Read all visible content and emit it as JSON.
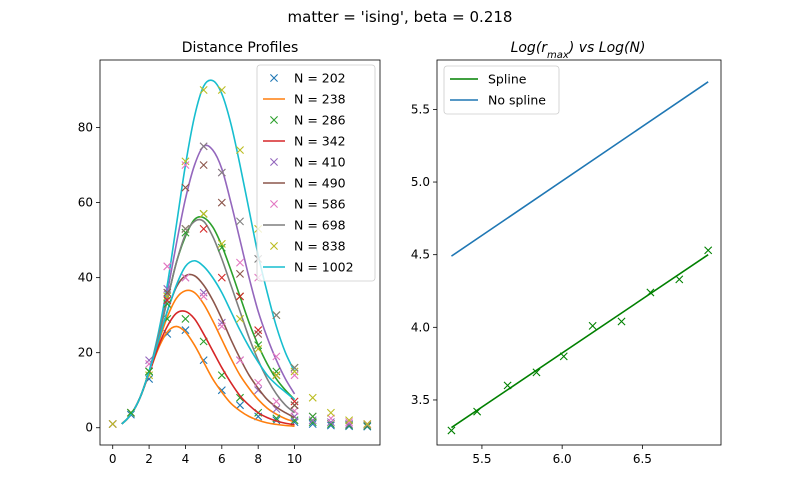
{
  "figure": {
    "suptitle": "matter = 'ising', beta = 0.218"
  },
  "chart_data": [
    {
      "type": "line",
      "title": "Distance Profiles",
      "xlabel": "",
      "ylabel": "",
      "xlim": [
        -0.7,
        14.7
      ],
      "ylim": [
        -4.6,
        98
      ],
      "xticks": [
        0,
        2,
        4,
        6,
        8,
        10
      ],
      "yticks": [
        0,
        20,
        40,
        60,
        80
      ],
      "grid": false,
      "legend_position": "top-right",
      "series": [
        {
          "name": "N = 202",
          "style": "markers",
          "color": "#1f77b4",
          "x": [
            0,
            1,
            2,
            3,
            4,
            5,
            6,
            7,
            8,
            9,
            10,
            11,
            12,
            13,
            14
          ],
          "y": [
            1,
            3.5,
            13,
            25,
            26,
            18,
            10,
            6,
            3,
            2,
            1.5,
            1,
            0.6,
            0.4,
            0.3
          ]
        },
        {
          "name": "N = 238",
          "style": "line",
          "color": "#ff7f0e",
          "x": [
            0.5,
            1,
            1.5,
            2,
            2.5,
            3,
            3.5,
            4,
            4.5,
            5,
            5.5,
            6,
            6.5,
            7,
            7.5,
            8,
            8.5,
            9,
            9.5,
            10
          ],
          "y": [
            1,
            3.5,
            8,
            14.5,
            21,
            25.5,
            27,
            25.5,
            22,
            17.5,
            13,
            9.5,
            6.5,
            4.5,
            3,
            2,
            1.3,
            0.9,
            0.6,
            0.4
          ]
        },
        {
          "name": "N = 286",
          "style": "markers",
          "color": "#2ca02c",
          "x": [
            0,
            1,
            2,
            3,
            4,
            5,
            6,
            7,
            8,
            9,
            10,
            11,
            12,
            13,
            14
          ],
          "y": [
            1,
            4,
            15,
            29,
            29,
            23,
            14,
            8,
            4,
            2.5,
            2,
            1.5,
            1,
            0.7,
            0.5
          ]
        },
        {
          "name": "N = 342",
          "style": "line",
          "color": "#d62728",
          "x": [
            0.5,
            1,
            1.5,
            2,
            2.5,
            3,
            3.5,
            4,
            4.5,
            5,
            5.5,
            6,
            6.5,
            7,
            7.5,
            8,
            8.5,
            9,
            9.5,
            10
          ],
          "y": [
            1,
            3.5,
            8,
            14.5,
            21.5,
            27,
            30.5,
            31,
            29,
            25,
            20.5,
            16,
            12,
            8.5,
            6,
            4,
            2.7,
            1.8,
            1.2,
            0.8
          ]
        },
        {
          "name": "N = 410",
          "style": "markers",
          "color": "#9467bd",
          "x": [
            0,
            1,
            2,
            3,
            4,
            5,
            6,
            7,
            8,
            9,
            10,
            11,
            12,
            13,
            14
          ],
          "y": [
            1,
            4,
            18,
            37,
            40,
            36,
            28,
            18,
            10,
            5,
            3,
            2,
            1.5,
            1,
            0.8
          ]
        },
        {
          "name": "N = 490",
          "style": "line",
          "color": "#8c564b",
          "x": [
            0.5,
            1,
            1.5,
            2,
            2.5,
            3,
            3.5,
            4,
            4.5,
            5,
            5.5,
            6,
            6.5,
            7,
            7.5,
            8,
            8.5,
            9,
            9.5,
            10
          ],
          "y": [
            1,
            3.5,
            8,
            15,
            23,
            31,
            37.5,
            40.5,
            40.5,
            38,
            34,
            29,
            23.5,
            18.5,
            14,
            10.5,
            7.5,
            5.5,
            4,
            2.7
          ]
        },
        {
          "name": "N = 586",
          "style": "markers",
          "color": "#e377c2",
          "x": [
            0,
            1,
            2,
            3,
            4,
            5,
            6,
            7,
            8,
            9,
            10,
            11,
            12,
            13,
            14
          ],
          "y": [
            1,
            4,
            17,
            43,
            40,
            35,
            27,
            18,
            12,
            7,
            4.5,
            3,
            2.5,
            1.5,
            1
          ]
        },
        {
          "name": "N = 698",
          "style": "line",
          "color": "#7f7f7f",
          "x": [
            0.5,
            1,
            1.5,
            2,
            2.5,
            3,
            3.5,
            4,
            4.5,
            5,
            5.5,
            6,
            6.5,
            7,
            7.5,
            8,
            8.5,
            9,
            9.5,
            10
          ],
          "y": [
            1,
            3.5,
            8,
            15,
            24,
            34,
            44,
            51.5,
            55,
            55,
            51,
            45,
            38,
            31,
            24,
            18,
            13,
            9,
            6,
            4
          ]
        },
        {
          "name": "N = 838",
          "style": "markers",
          "color": "#bcbd22",
          "x": [
            0,
            1,
            2,
            3,
            4,
            5,
            6,
            7,
            8,
            9,
            10,
            11,
            12,
            13,
            14
          ],
          "y": [
            1,
            4,
            14,
            35,
            71,
            90,
            90,
            74,
            53,
            30,
            16,
            8,
            4,
            2,
            1
          ]
        },
        {
          "name": "N = 1002",
          "style": "line",
          "color": "#17becf",
          "x": [
            0.5,
            1,
            1.5,
            2,
            2.5,
            3,
            3.5,
            4,
            4.5,
            5,
            5.5,
            6,
            6.5,
            7,
            7.5,
            8,
            8.5,
            9,
            9.5,
            10
          ],
          "y": [
            1,
            3.5,
            8,
            15,
            23,
            31,
            38,
            43,
            44.5,
            43,
            40,
            36,
            31,
            26,
            21.5,
            17.5,
            14,
            11.5,
            9.5,
            7.5
          ]
        }
      ],
      "extra_marks": [
        {
          "color": "#2ca02c",
          "x": [
            1,
            2,
            3,
            4,
            5,
            6,
            7,
            8,
            9,
            10,
            11
          ],
          "y": [
            4,
            15,
            33,
            52,
            57,
            48,
            35,
            22,
            15,
            6,
            3
          ]
        },
        {
          "color": "#d62728",
          "x": [
            3,
            4,
            5,
            6,
            7,
            8,
            9,
            10
          ],
          "y": [
            34,
            53,
            53,
            40,
            35,
            26,
            14,
            7
          ]
        },
        {
          "color": "#8c564b",
          "x": [
            3,
            4,
            5,
            6,
            7,
            8,
            9,
            10
          ],
          "y": [
            36,
            64,
            70,
            60,
            41,
            25,
            14,
            6
          ]
        },
        {
          "color": "#e377c2",
          "x": [
            3,
            4,
            5,
            6,
            7,
            8,
            9,
            10
          ],
          "y": [
            43,
            70,
            75,
            68,
            44,
            40,
            19,
            14
          ]
        },
        {
          "color": "#bcbd22",
          "x": [
            4,
            5,
            6,
            7,
            8,
            9,
            10
          ],
          "y": [
            53,
            57,
            49,
            29,
            21,
            14,
            15
          ]
        },
        {
          "color": "#7f7f7f",
          "x": [
            4,
            5,
            6,
            7,
            8,
            9,
            10
          ],
          "y": [
            53,
            75,
            68,
            55,
            45,
            30,
            16
          ]
        }
      ],
      "extra_lines": [
        {
          "color": "#2ca02c",
          "x": [
            0.5,
            1,
            1.5,
            2,
            2.5,
            3,
            3.5,
            4,
            4.5,
            5,
            5.5,
            6,
            6.5,
            7,
            7.5,
            8,
            8.5,
            9,
            9.5,
            10
          ],
          "y": [
            1,
            3.5,
            8,
            15,
            24,
            34,
            44,
            51,
            55.5,
            56,
            53.5,
            48.5,
            42,
            35,
            28,
            22,
            17,
            13,
            10,
            7.5
          ]
        },
        {
          "color": "#9467bd",
          "x": [
            0.5,
            1,
            1.5,
            2,
            2.5,
            3,
            3.5,
            4,
            4.5,
            5,
            5.5,
            6,
            6.5,
            7,
            7.5,
            8,
            8.5,
            9,
            9.5,
            10
          ],
          "y": [
            1,
            3.5,
            8,
            15,
            24,
            36,
            49,
            61,
            70,
            75,
            74,
            69,
            60,
            50,
            40,
            31,
            24,
            18,
            13,
            9
          ]
        },
        {
          "color": "#17becf",
          "x": [
            0.5,
            1,
            1.5,
            2,
            2.5,
            3,
            3.5,
            4,
            4.5,
            5,
            5.5,
            6,
            6.5,
            7,
            7.5,
            8,
            8.5,
            9,
            9.5,
            10
          ],
          "y": [
            1,
            3.5,
            8,
            15,
            25,
            38,
            54,
            70,
            83,
            91,
            92.5,
            89,
            81,
            70,
            58,
            46,
            36,
            27,
            20,
            15
          ]
        },
        {
          "color": "#ff7f0e",
          "x": [
            0.5,
            1,
            1.5,
            2,
            2.5,
            3,
            3.5,
            4,
            4.5,
            5,
            5.5,
            6,
            6.5,
            7,
            7.5,
            8,
            8.5,
            9,
            9.5,
            10
          ],
          "y": [
            1,
            3.5,
            8,
            15,
            22.5,
            29.5,
            34.5,
            36.5,
            36,
            33,
            28.5,
            23.5,
            18.5,
            14,
            10.5,
            7.5,
            5.2,
            3.6,
            2.4,
            1.6
          ]
        }
      ]
    },
    {
      "type": "line",
      "title": "Log(r_max) vs Log(N)",
      "title_parts": {
        "a": "Log(",
        "r": "r",
        "sub": "max",
        "b": ") vs Log(N)"
      },
      "xlabel": "",
      "ylabel": "",
      "xlim": [
        5.22,
        6.99
      ],
      "ylim": [
        3.19,
        5.84
      ],
      "xticks": [
        5.5,
        6.0,
        6.5
      ],
      "xtick_labels": [
        "5.5",
        "6.0",
        "6.5"
      ],
      "yticks": [
        3.5,
        4.0,
        4.5,
        5.0,
        5.5
      ],
      "ytick_labels": [
        "3.5",
        "4.0",
        "4.5",
        "5.0",
        "5.5"
      ],
      "grid": false,
      "legend_position": "top-left",
      "series": [
        {
          "name": "Spline",
          "style": "line",
          "color": "#008000",
          "x": [
            5.31,
            6.91
          ],
          "y": [
            3.31,
            4.5
          ]
        },
        {
          "name": "No spline",
          "style": "line",
          "color": "#1f77b4",
          "x": [
            5.31,
            6.91
          ],
          "y": [
            4.49,
            5.69
          ]
        }
      ],
      "markers": {
        "color": "#008000",
        "x": [
          5.31,
          5.47,
          5.66,
          5.84,
          6.01,
          6.19,
          6.37,
          6.55,
          6.73,
          6.91
        ],
        "y": [
          3.29,
          3.42,
          3.6,
          3.69,
          3.8,
          4.01,
          4.04,
          4.24,
          4.33,
          4.53
        ]
      }
    }
  ]
}
